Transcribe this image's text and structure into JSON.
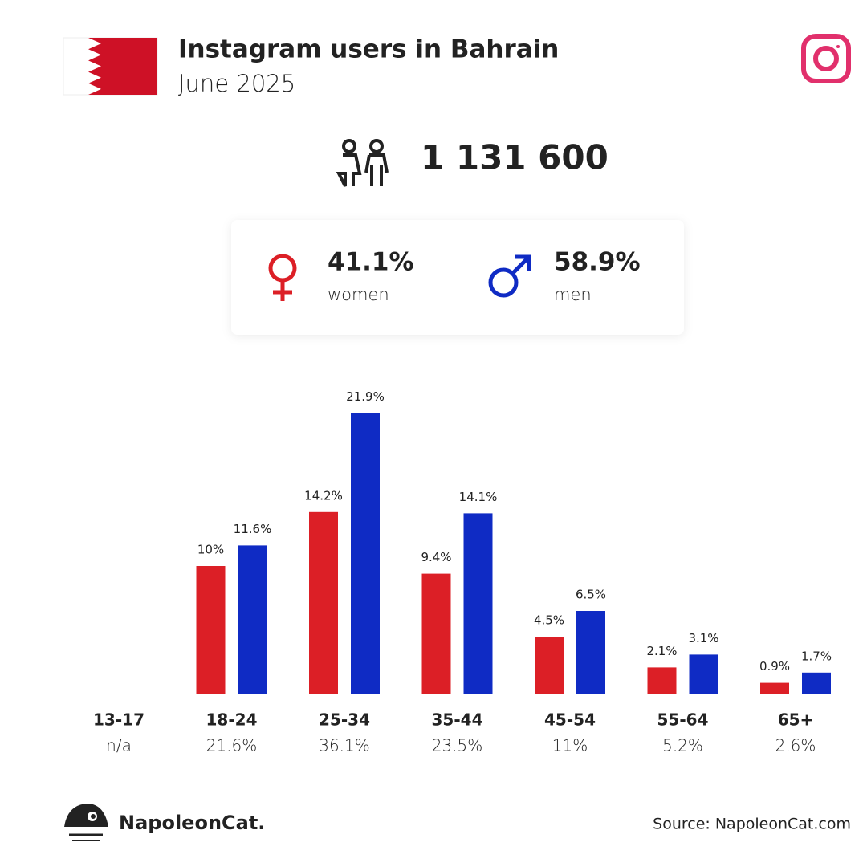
{
  "header": {
    "title": "Instagram users in Bahrain",
    "subtitle": "June 2025"
  },
  "total": "1 131 600",
  "gender": {
    "women": {
      "percent": "41.1%",
      "label": "women"
    },
    "men": {
      "percent": "58.9%",
      "label": "men"
    }
  },
  "chart_data": {
    "type": "bar",
    "categories": [
      "13-17",
      "18-24",
      "25-34",
      "35-44",
      "45-54",
      "55-64",
      "65+"
    ],
    "category_shares": [
      "n/a",
      "21.6%",
      "36.1%",
      "23.5%",
      "11%",
      "5.2%",
      "2.6%"
    ],
    "series": [
      {
        "name": "women",
        "color": "#dc1f26",
        "values": [
          null,
          10,
          14.2,
          9.4,
          4.5,
          2.1,
          0.9
        ],
        "value_labels": [
          null,
          "10%",
          "14.2%",
          "9.4%",
          "4.5%",
          "2.1%",
          "0.9%"
        ]
      },
      {
        "name": "men",
        "color": "#0f2bc4",
        "values": [
          null,
          11.6,
          21.9,
          14.1,
          6.5,
          3.1,
          1.7
        ],
        "value_labels": [
          null,
          "11.6%",
          "21.9%",
          "14.1%",
          "6.5%",
          "3.1%",
          "1.7%"
        ]
      }
    ]
  },
  "footer": {
    "brand": "NapoleonCat.",
    "source": "Source: NapoleonCat.com"
  }
}
